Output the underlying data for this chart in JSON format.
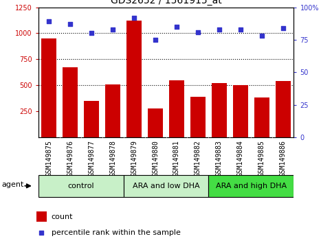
{
  "title": "GDS2652 / 1561915_at",
  "samples": [
    "GSM149875",
    "GSM149876",
    "GSM149877",
    "GSM149878",
    "GSM149879",
    "GSM149880",
    "GSM149881",
    "GSM149882",
    "GSM149883",
    "GSM149884",
    "GSM149885",
    "GSM149886"
  ],
  "counts": [
    950,
    670,
    350,
    510,
    1120,
    280,
    550,
    390,
    520,
    500,
    380,
    540
  ],
  "percentiles": [
    89,
    87,
    80,
    83,
    92,
    75,
    85,
    81,
    83,
    83,
    78,
    84
  ],
  "ylim_left": [
    0,
    1250
  ],
  "ylim_right": [
    0,
    100
  ],
  "yticks_left": [
    250,
    500,
    750,
    1000,
    1250
  ],
  "yticks_right": [
    0,
    25,
    50,
    75,
    100
  ],
  "right_tick_labels": [
    "0",
    "25",
    "50",
    "75",
    "100%"
  ],
  "bar_color": "#cc0000",
  "dot_color": "#3333cc",
  "grid_lines": [
    500,
    750,
    1000
  ],
  "group_colors": [
    "#c8f0c8",
    "#c8f0c8",
    "#44dd44"
  ],
  "group_labels": [
    "control",
    "ARA and low DHA",
    "ARA and high DHA"
  ],
  "group_starts": [
    0,
    4,
    8
  ],
  "group_ends": [
    4,
    8,
    12
  ],
  "sample_bg_color": "#d0d0d0",
  "legend_bar_color": "#cc0000",
  "legend_dot_color": "#3333cc",
  "title_fontsize": 10,
  "tick_fontsize": 7,
  "group_fontsize": 8,
  "legend_fontsize": 8
}
